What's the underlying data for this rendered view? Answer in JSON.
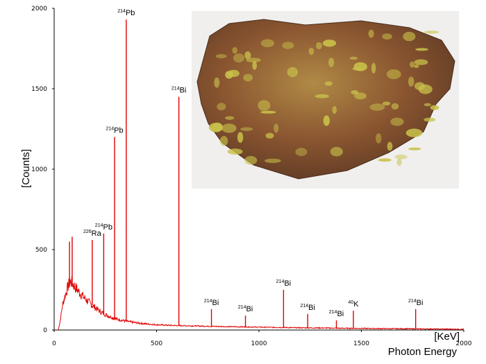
{
  "chart_data": {
    "type": "line",
    "title": "",
    "xlabel_unit": "[KeV]",
    "xlabel": "Photon Energy",
    "ylabel": "[Counts]",
    "xlim": [
      0,
      2000
    ],
    "ylim": [
      0,
      2000
    ],
    "x_ticks": [
      "0",
      "500",
      "1000",
      "1500",
      "2000"
    ],
    "y_ticks": [
      "0",
      "500",
      "1000",
      "1500",
      "2000"
    ],
    "grid": false,
    "line_color": "#e00000",
    "continuum": {
      "x": [
        20,
        30,
        40,
        50,
        60,
        70,
        80,
        90,
        100,
        120,
        140,
        160,
        180,
        200,
        230,
        260,
        300,
        350,
        400,
        450,
        500,
        550,
        600,
        700,
        800,
        900,
        1000,
        1100,
        1200,
        1300,
        1400,
        1500,
        1600,
        1700,
        1800,
        1900,
        2000
      ],
      "y": [
        0,
        60,
        150,
        200,
        240,
        280,
        300,
        290,
        270,
        240,
        210,
        185,
        160,
        140,
        110,
        90,
        70,
        55,
        45,
        38,
        33,
        30,
        28,
        25,
        22,
        20,
        18,
        16,
        14,
        13,
        11,
        10,
        9,
        8,
        7,
        6,
        5
      ]
    },
    "peaks": [
      {
        "energy": 75,
        "counts": 550,
        "isotope": "",
        "mass": ""
      },
      {
        "energy": 88,
        "counts": 580,
        "isotope": "",
        "mass": ""
      },
      {
        "energy": 186,
        "counts": 560,
        "isotope": "Ra",
        "mass": "226"
      },
      {
        "energy": 242,
        "counts": 600,
        "isotope": "Pb",
        "mass": "214"
      },
      {
        "energy": 295,
        "counts": 1200,
        "isotope": "Pb",
        "mass": "214"
      },
      {
        "energy": 352,
        "counts": 1930,
        "isotope": "Pb",
        "mass": "214"
      },
      {
        "energy": 609,
        "counts": 1450,
        "isotope": "Bi",
        "mass": "214"
      },
      {
        "energy": 768,
        "counts": 130,
        "isotope": "Bi",
        "mass": "214"
      },
      {
        "energy": 934,
        "counts": 90,
        "isotope": "Bi",
        "mass": "214"
      },
      {
        "energy": 1120,
        "counts": 250,
        "isotope": "Bi",
        "mass": "214"
      },
      {
        "energy": 1238,
        "counts": 100,
        "isotope": "Bi",
        "mass": "214"
      },
      {
        "energy": 1378,
        "counts": 60,
        "isotope": "Bi",
        "mass": "214"
      },
      {
        "energy": 1461,
        "counts": 120,
        "isotope": "K",
        "mass": "40"
      },
      {
        "energy": 1765,
        "counts": 130,
        "isotope": "Bi",
        "mass": "214"
      }
    ]
  },
  "inset_image": {
    "subject": "mineral-rock-specimen",
    "colors": [
      "#8a5530",
      "#c9c24a",
      "#5e3a24"
    ]
  }
}
